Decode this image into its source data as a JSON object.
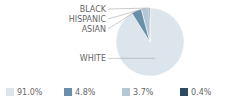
{
  "chart_data": {
    "type": "pie",
    "categories": [
      "WHITE",
      "ASIAN",
      "HISPANIC",
      "BLACK"
    ],
    "values": [
      91.0,
      4.8,
      3.7,
      0.4
    ],
    "value_labels": [
      "91.0%",
      "4.8%",
      "3.7%",
      "0.4%"
    ],
    "colors": [
      "#dce4ec",
      "#6a8fa9",
      "#b3c7d6",
      "#2c4a61"
    ],
    "legend": "bottom"
  }
}
